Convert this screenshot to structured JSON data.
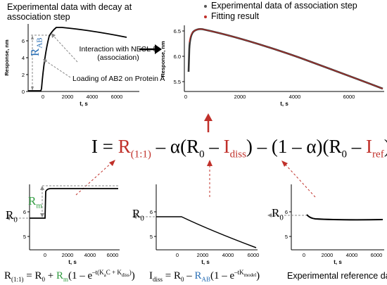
{
  "top_left": {
    "title": "Experimental data with decay at association step",
    "ylabel": "Response, nm",
    "xlabel": "t, s",
    "y_ticks": [
      "0",
      "2",
      "4",
      "6"
    ],
    "x_ticks": [
      "0",
      "2000",
      "4000",
      "6000"
    ],
    "label_rab": "R",
    "label_rab_sub": "AB",
    "annotation_interaction": "Interaction with NECL-5 (association)",
    "annotation_loading": "Loading of AB2 on Protein A"
  },
  "top_right": {
    "legend": [
      {
        "label": "Experimental data of association step",
        "color": "#555555"
      },
      {
        "label": "Fitting result",
        "color": "#c0302a"
      }
    ],
    "ylabel": "Response, nm",
    "xlabel": "t, s",
    "y_ticks": [
      "5.5",
      "6.0",
      "6.5"
    ],
    "x_ticks": [
      "0",
      "2000",
      "4000",
      "6000"
    ]
  },
  "main_equation": {
    "I": "I",
    "eq": " = ",
    "r11": "R",
    "r11_sub": "(1:1)",
    "p1": " – α(R",
    "r0_sub": "0",
    "minus": " – ",
    "idiss": "I",
    "idiss_sub": "diss",
    "p2": ") – (1 – α)(R",
    "r0_sub2": "0",
    "minus2": " – ",
    "iref": "I",
    "iref_sub": "ref",
    "close": ")"
  },
  "bottom_left": {
    "rm_label": "R",
    "rm_sub": "m",
    "r0_label": "R",
    "r0_sub": "0",
    "xlabel": "t, s",
    "x_ticks": [
      "0",
      "2000",
      "4000",
      "6000"
    ],
    "y_ticks": [
      "5",
      "6"
    ],
    "equation": {
      "lhs": "R",
      "lhs_sub": "(1:1)",
      "eq": " = R",
      "r0_sub": "0",
      "plus": " + ",
      "rm": "R",
      "rm_sub": "m",
      "rest": "(1 – e",
      "exp": "–t(K",
      "ka_sub": "a",
      "exp2": "C + K",
      "kd_sub": "diss",
      "exp3": ")",
      "close": ")"
    }
  },
  "bottom_middle": {
    "r0_label": "R",
    "r0_sub": "0",
    "xlabel": "t, s",
    "x_ticks": [
      "0",
      "2000",
      "4000",
      "6000"
    ],
    "y_ticks": [
      "5",
      "6"
    ],
    "equation": {
      "lhs": "I",
      "lhs_sub": "diss",
      "eq": " = R",
      "r0_sub": "0",
      "minus": " – ",
      "rab": "R",
      "rab_sub": "AB",
      "rest": "(1 – e",
      "exp": "–tK",
      "exp_sub": "model",
      "close": ")"
    }
  },
  "bottom_right": {
    "r0_label": "R",
    "r0_sub": "0",
    "xlabel": "t, s",
    "x_ticks": [
      "0",
      "2000",
      "4000",
      "6000"
    ],
    "y_ticks": [
      "5",
      "6"
    ],
    "caption": "Experimental reference data"
  },
  "colors": {
    "red": "#c0302a",
    "blue": "#2a6fb5",
    "green": "#2e9a3e",
    "gray_dash": "#888888"
  }
}
